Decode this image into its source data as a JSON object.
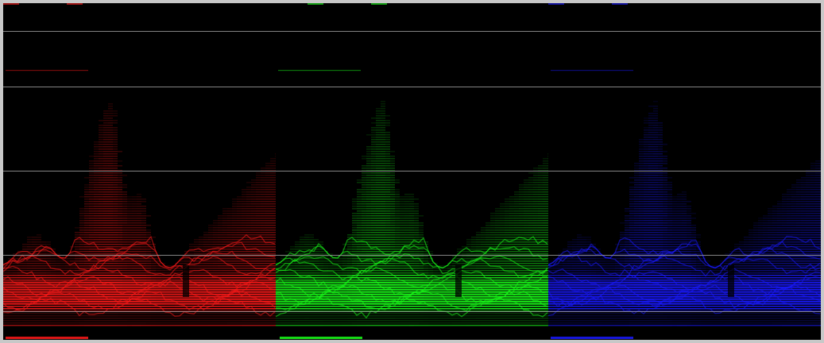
{
  "scope": {
    "type": "rgb-parade-waveform",
    "channels": [
      {
        "name": "red",
        "color": "#ff1a1a"
      },
      {
        "name": "green",
        "color": "#1aff1a"
      },
      {
        "name": "blue",
        "color": "#1a1aff"
      }
    ],
    "graticule_color": "#9a9a9a",
    "background_color": "#000000",
    "frame_color": "#c8c8c8"
  }
}
